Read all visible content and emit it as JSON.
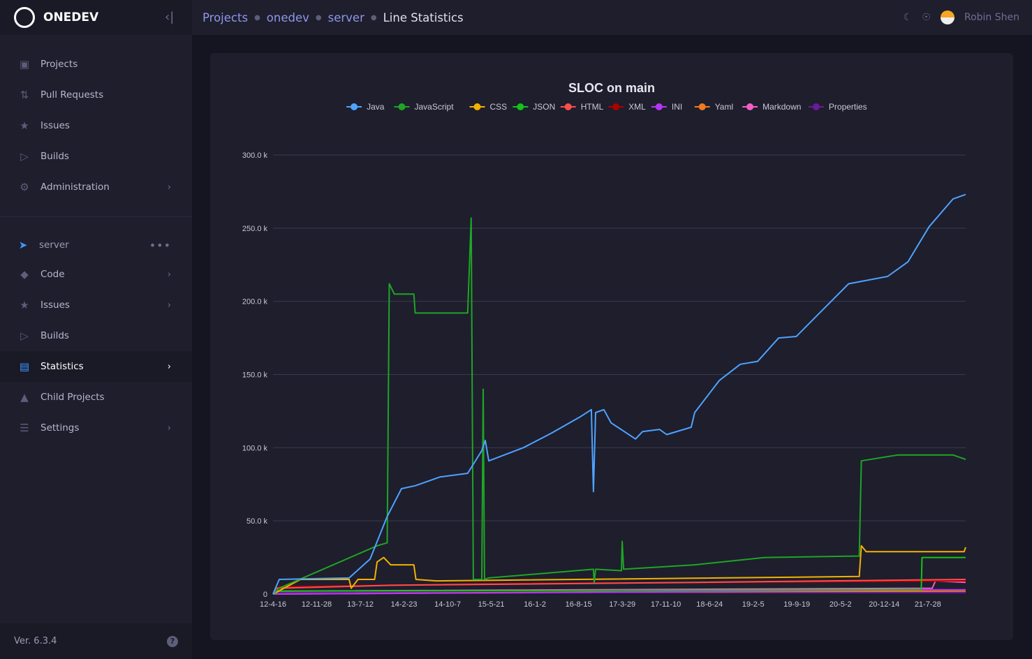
{
  "app": {
    "name": "ONEDEV",
    "version": "Ver. 6.3.4"
  },
  "sidebar": {
    "items": [
      {
        "label": "Projects",
        "icon": "book-icon"
      },
      {
        "label": "Pull Requests",
        "icon": "pull-request-icon"
      },
      {
        "label": "Issues",
        "icon": "bug-icon"
      },
      {
        "label": "Builds",
        "icon": "play-icon"
      },
      {
        "label": "Administration",
        "icon": "gear-icon",
        "chevron": true
      }
    ],
    "project": {
      "name": "server",
      "items": [
        {
          "label": "Code",
          "icon": "code-icon",
          "chevron": true
        },
        {
          "label": "Issues",
          "icon": "bug-icon",
          "chevron": true
        },
        {
          "label": "Builds",
          "icon": "play-icon"
        },
        {
          "label": "Statistics",
          "icon": "bar-chart-icon",
          "chevron": true,
          "active": true
        },
        {
          "label": "Child Projects",
          "icon": "tree-icon"
        },
        {
          "label": "Settings",
          "icon": "sliders-icon",
          "chevron": true
        }
      ]
    }
  },
  "header": {
    "breadcrumbs": [
      "Projects",
      "onedev",
      "server"
    ],
    "current": "Line Statistics",
    "user": "Robin Shen"
  },
  "chart_data": {
    "type": "line",
    "title": "SLOC on main",
    "ylim": [
      0,
      300000
    ],
    "yticks": [
      "0",
      "50.0 k",
      "100.0 k",
      "150.0 k",
      "200.0 k",
      "250.0 k",
      "300.0 k"
    ],
    "ytick_values": [
      0,
      50000,
      100000,
      150000,
      200000,
      250000,
      300000
    ],
    "xlim": [
      "2012-04-16",
      "2022-02-09"
    ],
    "xticks": [
      "12-4-16",
      "12-11-28",
      "13-7-12",
      "14-2-23",
      "14-10-7",
      "15-5-21",
      "16-1-2",
      "16-8-15",
      "17-3-29",
      "17-11-10",
      "18-6-24",
      "19-2-5",
      "19-9-19",
      "20-5-2",
      "20-12-14",
      "21-7-28"
    ],
    "xtick_dates": [
      "2012-04-16",
      "2012-11-28",
      "2013-07-12",
      "2014-02-23",
      "2014-10-07",
      "2015-05-21",
      "2016-01-02",
      "2016-08-15",
      "2017-03-29",
      "2017-11-10",
      "2018-06-24",
      "2019-02-05",
      "2019-09-19",
      "2020-05-02",
      "2020-12-14",
      "2021-07-28"
    ],
    "grid": true,
    "legend": "top",
    "series": [
      {
        "name": "Java",
        "color": "#4ea3ff",
        "points": [
          [
            "2012-04-16",
            0
          ],
          [
            "2012-05-18",
            10000
          ],
          [
            "2013-05-15",
            11000
          ],
          [
            "2013-09-01",
            24000
          ],
          [
            "2013-11-28",
            53000
          ],
          [
            "2014-02-10",
            72000
          ],
          [
            "2014-04-22",
            74000
          ],
          [
            "2014-08-28",
            80000
          ],
          [
            "2015-01-19",
            82500
          ],
          [
            "2015-04-02",
            98000
          ],
          [
            "2015-04-20",
            105000
          ],
          [
            "2015-05-08",
            91000
          ],
          [
            "2015-11-03",
            100000
          ],
          [
            "2016-03-28",
            110000
          ],
          [
            "2016-08-22",
            121000
          ],
          [
            "2016-10-20",
            126000
          ],
          [
            "2016-10-31",
            70000
          ],
          [
            "2016-11-11",
            124000
          ],
          [
            "2016-12-24",
            126000
          ],
          [
            "2017-01-30",
            117000
          ],
          [
            "2017-06-06",
            106000
          ],
          [
            "2017-07-12",
            111000
          ],
          [
            "2017-10-08",
            112500
          ],
          [
            "2017-11-14",
            109000
          ],
          [
            "2018-03-21",
            114000
          ],
          [
            "2018-04-08",
            124000
          ],
          [
            "2018-08-14",
            146000
          ],
          [
            "2018-11-30",
            157000
          ],
          [
            "2019-02-28",
            159000
          ],
          [
            "2019-06-17",
            175000
          ],
          [
            "2019-09-16",
            176000
          ],
          [
            "2020-02-06",
            195000
          ],
          [
            "2020-06-13",
            212000
          ],
          [
            "2021-01-01",
            217000
          ],
          [
            "2021-04-16",
            227000
          ],
          [
            "2021-08-04",
            251000
          ],
          [
            "2021-12-06",
            270000
          ],
          [
            "2022-02-09",
            273000
          ]
        ]
      },
      {
        "name": "JavaScript",
        "color": "#1fa525",
        "points": [
          [
            "2012-04-16",
            0
          ],
          [
            "2012-05-18",
            4000
          ],
          [
            "2013-10-07",
            33000
          ],
          [
            "2013-11-28",
            35000
          ],
          [
            "2013-12-09",
            212000
          ],
          [
            "2014-01-04",
            205000
          ],
          [
            "2014-04-15",
            205000
          ],
          [
            "2014-04-22",
            192000
          ],
          [
            "2015-01-19",
            192000
          ],
          [
            "2015-02-06",
            257000
          ],
          [
            "2015-02-17",
            10000
          ],
          [
            "2015-04-02",
            10000
          ],
          [
            "2015-04-09",
            140000
          ],
          [
            "2015-04-16",
            10000
          ],
          [
            "2015-05-08",
            11000
          ],
          [
            "2016-10-31",
            17000
          ],
          [
            "2016-11-04",
            8000
          ],
          [
            "2016-11-11",
            17000
          ],
          [
            "2017-03-25",
            16000
          ],
          [
            "2017-03-29",
            36000
          ],
          [
            "2017-04-05",
            17000
          ],
          [
            "2018-04-08",
            20000
          ],
          [
            "2019-04-05",
            25000
          ],
          [
            "2020-08-07",
            26000
          ],
          [
            "2020-08-18",
            91000
          ],
          [
            "2021-02-21",
            95000
          ],
          [
            "2021-12-06",
            95000
          ],
          [
            "2022-02-09",
            92000
          ]
        ]
      },
      {
        "name": "CSS",
        "color": "#f3b200",
        "points": [
          [
            "2012-04-16",
            0
          ],
          [
            "2012-09-05",
            10000
          ],
          [
            "2013-05-15",
            10000
          ],
          [
            "2013-05-26",
            4000
          ],
          [
            "2013-06-30",
            10000
          ],
          [
            "2013-09-24",
            10000
          ],
          [
            "2013-10-07",
            22000
          ],
          [
            "2013-11-10",
            25000
          ],
          [
            "2013-12-16",
            20000
          ],
          [
            "2014-04-15",
            20000
          ],
          [
            "2014-04-26",
            10000
          ],
          [
            "2014-08-10",
            9000
          ],
          [
            "2020-08-07",
            12000
          ],
          [
            "2020-08-18",
            33000
          ],
          [
            "2020-09-12",
            29000
          ],
          [
            "2022-02-01",
            29000
          ],
          [
            "2022-02-09",
            32000
          ]
        ]
      },
      {
        "name": "JSON",
        "color": "#14c21a",
        "points": [
          [
            "2012-04-16",
            0
          ],
          [
            "2012-05-18",
            2000
          ],
          [
            "2021-06-24",
            3000
          ],
          [
            "2021-06-28",
            25000
          ],
          [
            "2022-02-09",
            25000
          ]
        ]
      },
      {
        "name": "HTML",
        "color": "#ff4d4d",
        "points": [
          [
            "2012-04-16",
            0
          ],
          [
            "2012-05-01",
            4000
          ],
          [
            "2013-12-16",
            6000
          ],
          [
            "2018-04-25",
            8000
          ],
          [
            "2022-02-09",
            10000
          ]
        ]
      },
      {
        "name": "XML",
        "color": "#b00000",
        "points": [
          [
            "2012-04-16",
            0
          ],
          [
            "2012-05-18",
            5000
          ],
          [
            "2015-05-08",
            7000
          ],
          [
            "2022-02-09",
            9000
          ]
        ]
      },
      {
        "name": "INI",
        "color": "#b535f5",
        "points": [
          [
            "2012-04-16",
            0
          ],
          [
            "2016-02-01",
            1000
          ],
          [
            "2021-08-20",
            3000
          ],
          [
            "2022-02-09",
            3000
          ]
        ]
      },
      {
        "name": "Yaml",
        "color": "#f07a1f",
        "points": [
          [
            "2012-04-16",
            0
          ],
          [
            "2017-01-01",
            1500
          ],
          [
            "2022-02-09",
            2000
          ]
        ]
      },
      {
        "name": "Markdown",
        "color": "#f25ec6",
        "points": [
          [
            "2012-04-16",
            0
          ],
          [
            "2012-05-01",
            2000
          ],
          [
            "2021-08-20",
            4000
          ],
          [
            "2021-09-06",
            9000
          ],
          [
            "2022-02-09",
            8000
          ]
        ]
      },
      {
        "name": "Properties",
        "color": "#6a1b9a",
        "points": [
          [
            "2012-04-16",
            0
          ],
          [
            "2012-06-01",
            1000
          ],
          [
            "2022-02-09",
            1000
          ]
        ]
      }
    ]
  }
}
